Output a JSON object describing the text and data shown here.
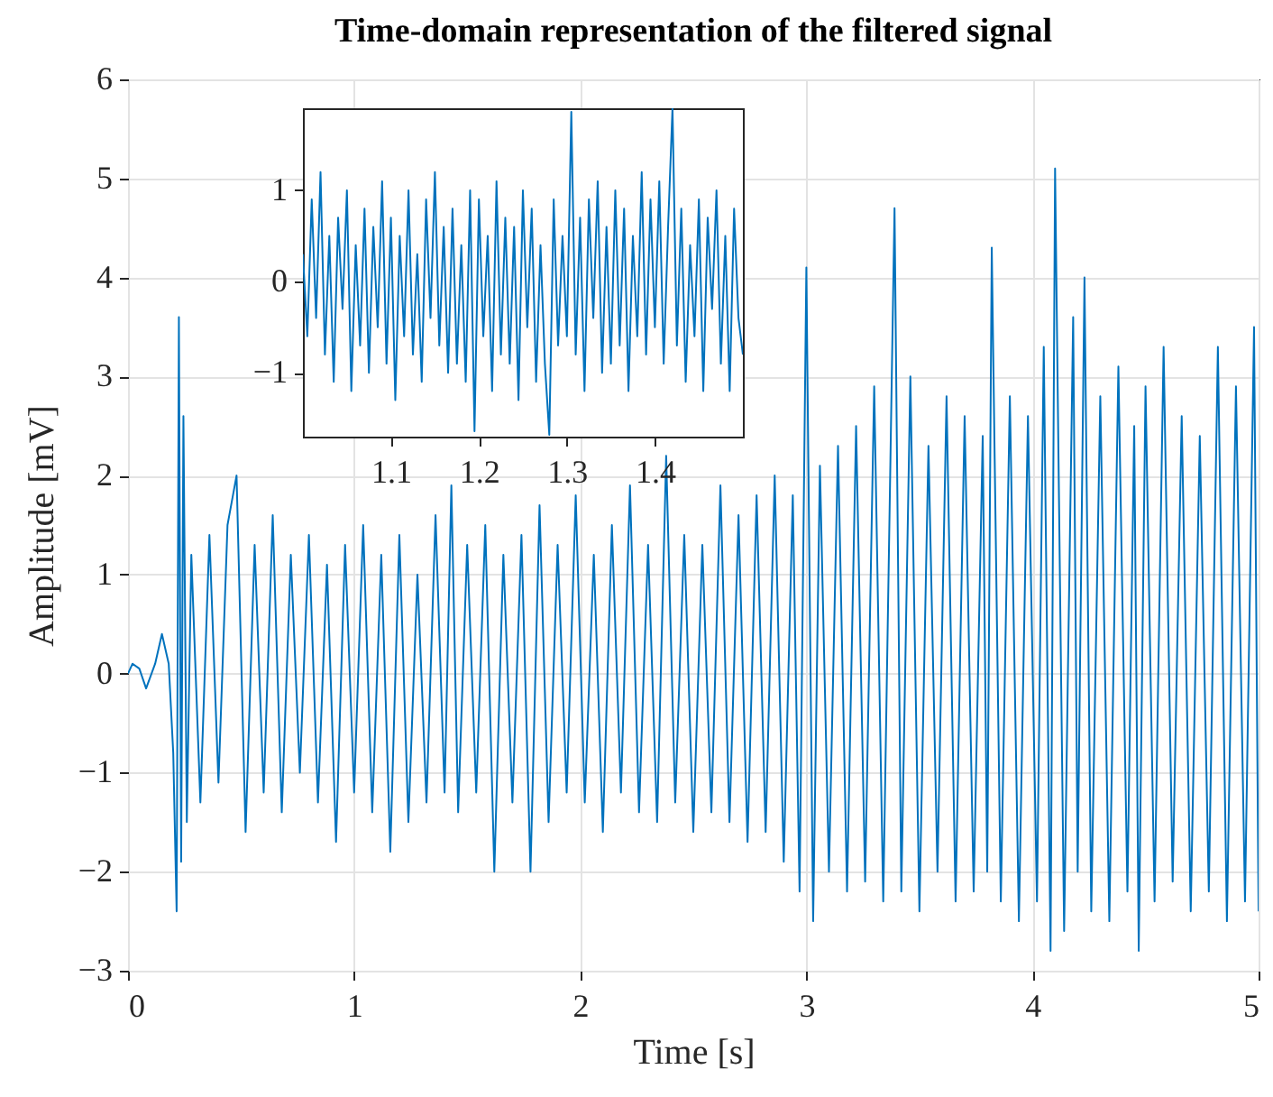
{
  "chart_data": [
    {
      "type": "line",
      "title": "Time-domain representation of the filtered signal",
      "xlabel": "Time [s]",
      "ylabel": "Amplitude [mV]",
      "x": [
        0,
        0.02,
        0.05,
        0.08,
        0.12,
        0.15,
        0.18,
        0.2,
        0.215,
        0.225,
        0.235,
        0.245,
        0.26,
        0.28,
        0.32,
        0.36,
        0.4,
        0.44,
        0.48,
        0.52,
        0.56,
        0.6,
        0.64,
        0.68,
        0.72,
        0.76,
        0.8,
        0.84,
        0.88,
        0.92,
        0.96,
        1.0,
        1.04,
        1.08,
        1.12,
        1.16,
        1.2,
        1.24,
        1.28,
        1.32,
        1.36,
        1.4,
        1.43,
        1.46,
        1.5,
        1.54,
        1.58,
        1.62,
        1.66,
        1.7,
        1.74,
        1.78,
        1.82,
        1.86,
        1.9,
        1.94,
        1.98,
        2.02,
        2.06,
        2.1,
        2.14,
        2.18,
        2.22,
        2.26,
        2.3,
        2.34,
        2.38,
        2.42,
        2.46,
        2.5,
        2.54,
        2.58,
        2.62,
        2.66,
        2.7,
        2.74,
        2.78,
        2.82,
        2.86,
        2.9,
        2.94,
        2.97,
        3.0,
        3.03,
        3.06,
        3.1,
        3.14,
        3.18,
        3.22,
        3.26,
        3.3,
        3.34,
        3.39,
        3.42,
        3.46,
        3.5,
        3.54,
        3.58,
        3.62,
        3.66,
        3.7,
        3.74,
        3.78,
        3.8,
        3.82,
        3.86,
        3.9,
        3.94,
        3.98,
        4.02,
        4.05,
        4.08,
        4.1,
        4.14,
        4.18,
        4.2,
        4.23,
        4.26,
        4.3,
        4.34,
        4.38,
        4.42,
        4.45,
        4.47,
        4.5,
        4.54,
        4.58,
        4.62,
        4.66,
        4.7,
        4.74,
        4.78,
        4.82,
        4.86,
        4.9,
        4.94,
        4.98,
        5.0
      ],
      "series": [
        {
          "color": "#0072bd",
          "values": [
            0,
            0.1,
            0.05,
            -0.15,
            0.1,
            0.4,
            0.1,
            -0.8,
            -2.4,
            3.6,
            -1.9,
            2.6,
            -1.5,
            1.2,
            -1.3,
            1.4,
            -1.1,
            1.5,
            2.0,
            -1.6,
            1.3,
            -1.2,
            1.6,
            -1.4,
            1.2,
            -1.0,
            1.4,
            -1.3,
            1.1,
            -1.7,
            1.3,
            -1.2,
            1.5,
            -1.4,
            1.2,
            -1.8,
            1.4,
            -1.5,
            1.0,
            -1.3,
            1.6,
            -1.2,
            1.9,
            -1.4,
            1.3,
            -1.2,
            1.5,
            -2.0,
            1.2,
            -1.3,
            1.4,
            -2.0,
            1.7,
            -1.5,
            1.3,
            -1.2,
            1.8,
            -1.3,
            1.2,
            -1.6,
            1.5,
            -1.2,
            1.9,
            -1.4,
            1.3,
            -1.5,
            2.2,
            -1.3,
            1.4,
            -1.6,
            1.3,
            -1.4,
            1.9,
            -1.5,
            1.6,
            -1.7,
            1.8,
            -1.6,
            2.0,
            -1.9,
            1.8,
            -2.2,
            4.1,
            -2.5,
            2.1,
            -2.0,
            2.3,
            -2.2,
            2.5,
            -2.1,
            2.9,
            -2.3,
            4.7,
            -2.2,
            3.0,
            -2.4,
            2.3,
            -2.0,
            2.8,
            -2.3,
            2.6,
            -2.2,
            2.4,
            -2.0,
            4.3,
            -2.3,
            2.8,
            -2.5,
            2.6,
            -2.3,
            3.3,
            -2.8,
            5.1,
            -2.6,
            3.6,
            -2.0,
            4.0,
            -2.4,
            2.8,
            -2.5,
            3.1,
            -2.2,
            2.5,
            -2.8,
            2.9,
            -2.3,
            3.3,
            -2.1,
            2.6,
            -2.4,
            2.4,
            -2.2,
            3.3,
            -2.5,
            2.9,
            -2.3,
            3.5,
            -2.4
          ]
        }
      ],
      "xlim": [
        0,
        5
      ],
      "ylim": [
        -3,
        6
      ],
      "xticks": [
        0,
        1,
        2,
        3,
        4,
        5
      ],
      "yticks": [
        -3,
        -2,
        -1,
        0,
        1,
        2,
        3,
        4,
        5,
        6
      ],
      "grid": true
    },
    {
      "type": "line",
      "x": [
        1.0,
        1.005,
        1.01,
        1.015,
        1.02,
        1.025,
        1.03,
        1.035,
        1.04,
        1.045,
        1.05,
        1.055,
        1.06,
        1.065,
        1.07,
        1.075,
        1.08,
        1.085,
        1.09,
        1.095,
        1.1,
        1.105,
        1.11,
        1.115,
        1.12,
        1.125,
        1.13,
        1.135,
        1.14,
        1.145,
        1.15,
        1.155,
        1.16,
        1.165,
        1.17,
        1.175,
        1.18,
        1.185,
        1.19,
        1.195,
        1.2,
        1.205,
        1.21,
        1.215,
        1.22,
        1.225,
        1.23,
        1.235,
        1.24,
        1.245,
        1.25,
        1.255,
        1.26,
        1.265,
        1.27,
        1.275,
        1.28,
        1.285,
        1.29,
        1.295,
        1.3,
        1.305,
        1.31,
        1.315,
        1.32,
        1.325,
        1.33,
        1.335,
        1.34,
        1.345,
        1.35,
        1.355,
        1.36,
        1.365,
        1.37,
        1.375,
        1.38,
        1.385,
        1.39,
        1.395,
        1.4,
        1.405,
        1.41,
        1.415,
        1.42,
        1.425,
        1.43,
        1.435,
        1.44,
        1.445,
        1.45,
        1.455,
        1.46,
        1.465,
        1.47,
        1.475,
        1.48,
        1.485,
        1.49,
        1.495,
        1.5
      ],
      "series": [
        {
          "color": "#0072bd",
          "values": [
            0.3,
            -0.6,
            0.9,
            -0.4,
            1.2,
            -0.8,
            0.5,
            -1.1,
            0.7,
            -0.3,
            1.0,
            -1.2,
            0.4,
            -0.7,
            0.8,
            -1.0,
            0.6,
            -0.5,
            1.1,
            -0.9,
            0.7,
            -1.3,
            0.5,
            -0.6,
            1.0,
            -0.8,
            0.3,
            -1.1,
            0.9,
            -0.4,
            1.2,
            -0.7,
            0.6,
            -1.0,
            0.8,
            -0.9,
            0.4,
            -1.1,
            1.0,
            -1.64,
            0.9,
            -0.6,
            0.5,
            -1.2,
            1.1,
            -0.8,
            0.7,
            -0.9,
            0.6,
            -1.3,
            1.0,
            -0.5,
            0.8,
            -1.1,
            0.4,
            -0.9,
            -1.68,
            0.9,
            -0.7,
            0.5,
            -0.6,
            1.86,
            -0.8,
            0.7,
            -1.2,
            0.9,
            -0.4,
            1.1,
            -1.0,
            0.6,
            -0.9,
            1.0,
            -0.7,
            0.8,
            -1.2,
            0.5,
            -0.6,
            1.2,
            -0.8,
            0.9,
            -0.5,
            1.1,
            -0.9,
            0.6,
            1.9,
            -0.7,
            0.8,
            -1.1,
            0.4,
            -0.6,
            0.9,
            -1.2,
            0.7,
            -0.3,
            1.0,
            -0.9,
            0.5,
            -1.2,
            0.8,
            -0.4,
            -0.8
          ]
        }
      ],
      "xlim": [
        1.0,
        1.5
      ],
      "ylim": [
        -1.7,
        1.9
      ],
      "xticks": [
        1.1,
        1.2,
        1.3,
        1.4
      ],
      "yticks": [
        -1,
        0,
        1
      ]
    }
  ]
}
